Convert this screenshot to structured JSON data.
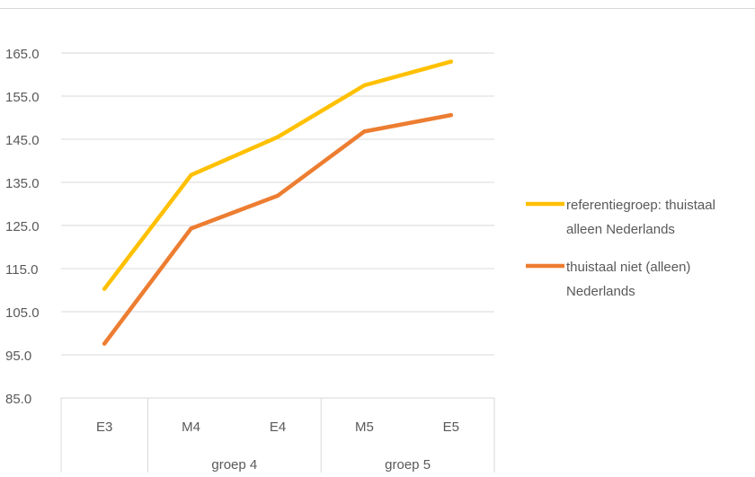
{
  "chart_data": {
    "type": "line",
    "title": "",
    "xlabel": "",
    "ylabel": "",
    "categories": [
      "E3",
      "M4",
      "E4",
      "M5",
      "E5"
    ],
    "groups": [
      {
        "label": "",
        "categories": [
          "E3"
        ]
      },
      {
        "label": "groep 4",
        "categories": [
          "M4",
          "E4"
        ]
      },
      {
        "label": "groep 5",
        "categories": [
          "M5",
          "E5"
        ]
      }
    ],
    "ylim": [
      85,
      165
    ],
    "yticks": [
      "85.0",
      "95.0",
      "105.0",
      "115.0",
      "125.0",
      "135.0",
      "145.0",
      "155.0",
      "165.0"
    ],
    "grid": true,
    "legend_position": "right",
    "series": [
      {
        "name": "referentiegroep: thuistaal alleen Nederlands",
        "legend_lines": [
          "referentiegroep: thuistaal",
          "alleen Nederlands"
        ],
        "color": "#FFC000",
        "values": [
          110.3,
          136.7,
          145.5,
          157.5,
          163.0
        ]
      },
      {
        "name": "thuistaal niet (alleen) Nederlands",
        "legend_lines": [
          "thuistaal niet (alleen)",
          "Nederlands"
        ],
        "color": "#ED7D31",
        "values": [
          97.6,
          124.3,
          131.9,
          146.8,
          150.6
        ]
      }
    ]
  }
}
